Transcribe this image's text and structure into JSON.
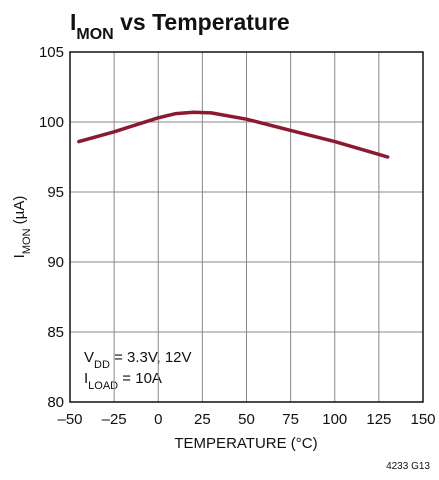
{
  "chart_data": {
    "type": "line",
    "title": [
      "I",
      "MON",
      " vs Temperature"
    ],
    "y_label": [
      "I",
      "MON",
      " (µA)"
    ],
    "x_label": "TEMPERATURE (°C)",
    "annotation": [
      [
        "V",
        "DD",
        " = 3.3V, 12V"
      ],
      [
        "I",
        "LOAD",
        " = 10A"
      ]
    ],
    "footnote": "4233 G13",
    "x": [
      -45,
      -25,
      0,
      10,
      20,
      30,
      50,
      75,
      100,
      130
    ],
    "series": [
      {
        "color": "#8b1a2e",
        "values": [
          98.6,
          99.3,
          100.3,
          100.6,
          100.7,
          100.65,
          100.2,
          99.4,
          98.6,
          97.5
        ]
      }
    ],
    "xlim": [
      -50,
      150
    ],
    "xticks": [
      {
        "value": -50,
        "label": "–50"
      },
      {
        "value": -25,
        "label": "–25"
      },
      0,
      25,
      50,
      75,
      100,
      125,
      150
    ],
    "ylim": [
      80,
      105
    ],
    "yticks": [
      80,
      85,
      90,
      95,
      100,
      105
    ],
    "grid": true
  }
}
